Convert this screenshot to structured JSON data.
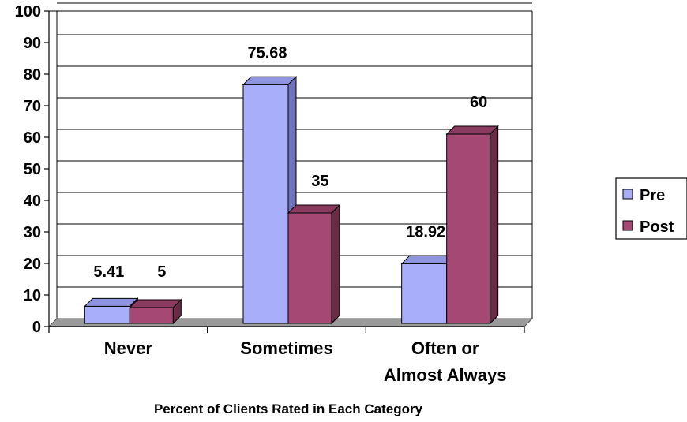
{
  "chart_data": {
    "type": "bar",
    "categories": [
      [
        "Never"
      ],
      [
        "Sometimes"
      ],
      [
        "Often or",
        "Almost Always"
      ]
    ],
    "series": [
      {
        "name": "Pre",
        "values": [
          5.41,
          75.68,
          18.92
        ],
        "color": "#a9aefa",
        "side": "#6f73ba",
        "top": "#8f94de"
      },
      {
        "name": "Post",
        "values": [
          5,
          35,
          60
        ],
        "color": "#a54873",
        "side": "#6a2b47",
        "top": "#8a3a5e"
      }
    ],
    "data_labels": [
      [
        "5.41",
        "75.68",
        "18.92"
      ],
      [
        "5",
        "35",
        "60"
      ]
    ],
    "y_ticks": [
      0,
      10,
      20,
      30,
      40,
      50,
      60,
      70,
      80,
      90,
      100
    ],
    "ylim": [
      0,
      100
    ],
    "xlabel": "Percent of Clients Rated in Each Category",
    "ylabel": "",
    "title": "",
    "grid": true,
    "legend_position": "right",
    "floor_color": "#9a9a9a"
  }
}
